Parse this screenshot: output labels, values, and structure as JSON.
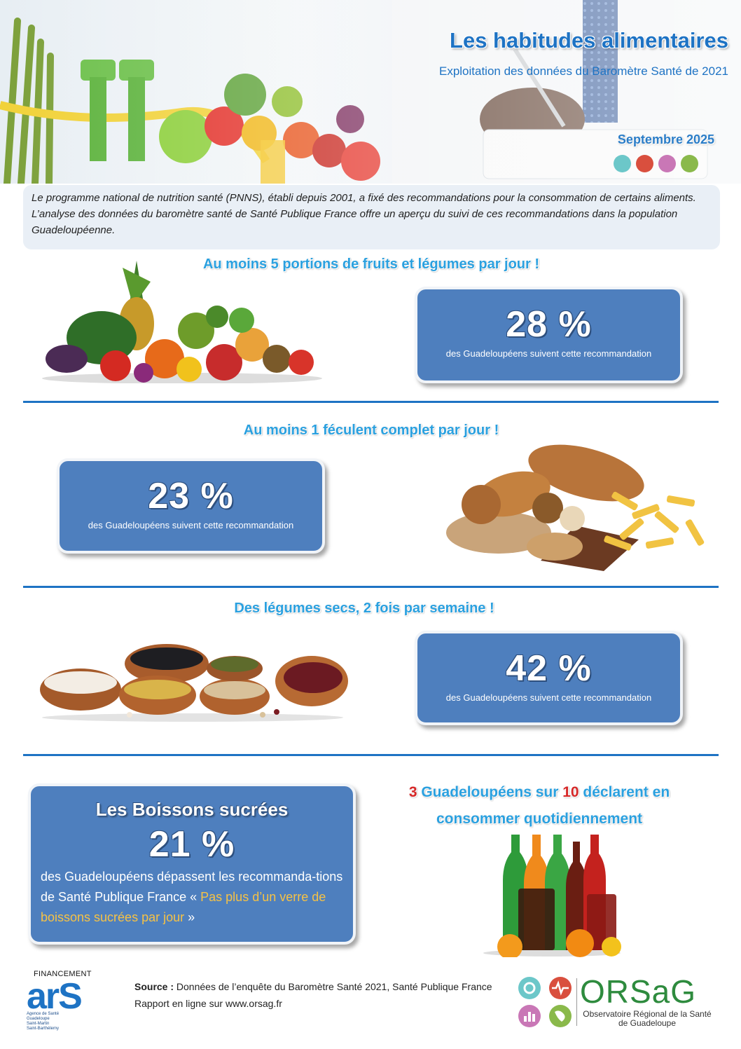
{
  "header": {
    "title": "Les habitudes alimentaires",
    "subtitle": "Exploitation des données du Baromètre Santé de 2021",
    "date": "Septembre 2025",
    "dot_colors": [
      "#6cc7c9",
      "#d94f3e",
      "#c977b6",
      "#8ab94b"
    ]
  },
  "intro": {
    "text": "Le programme national de nutrition santé (PNNS), établi depuis 2001, a fixé des recommandations pour la consommation de certains aliments. L’analyse des données du baromètre santé de Santé Publique France offre un aperçu du suivi de ces recommandations dans la population Guadeloupéenne."
  },
  "sections": [
    {
      "heading": "Au moins 5 portions de fruits et légumes par jour !",
      "value": "28 %",
      "caption": "des Guadeloupéens suivent cette recommandation",
      "image": "fruits-vegetables-image"
    },
    {
      "heading": "Au moins 1 féculent complet par jour !",
      "value": "23 %",
      "caption": "des Guadeloupéens suivent cette recommandation",
      "image": "bread-pasta-image"
    },
    {
      "heading": "Des légumes secs, 2 fois par semaine !",
      "value": "42 %",
      "caption": "des Guadeloupéens suivent cette recommandation",
      "image": "legumes-bowls-image"
    }
  ],
  "drinks": {
    "title": "Les Boissons sucrées",
    "value": "21 %",
    "text_before": "des Guadeloupéens dépassent les recommanda-tions de Santé Publique France « ",
    "highlight": "Pas plus d’un verre de boissons sucrées par jour",
    "text_after": " »",
    "decl_num1": "3",
    "decl_mid": " Guadeloupéens sur ",
    "decl_num2": "10",
    "decl_end": " déclarent en",
    "decl_line2": "consommer quotidiennement",
    "highlight_color": "#f6c245"
  },
  "footer": {
    "funding_label": "FINANCEMENT",
    "ars_logo_text": "arS",
    "ars_logo_lines": [
      "Agence de Santé",
      "Guadeloupe",
      "Saint-Martin",
      "Saint-Barthélemy"
    ],
    "source_label": "Source :",
    "source_text": " Données de l’enquête du Baromètre Santé 2021, Santé Publique France",
    "report_text": "Rapport en ligne sur www.orsag.fr",
    "orsag_name": "ORSaG",
    "orsag_sub1": "Observatoire Régional de la Santé",
    "orsag_sub2": "de Guadeloupe"
  }
}
